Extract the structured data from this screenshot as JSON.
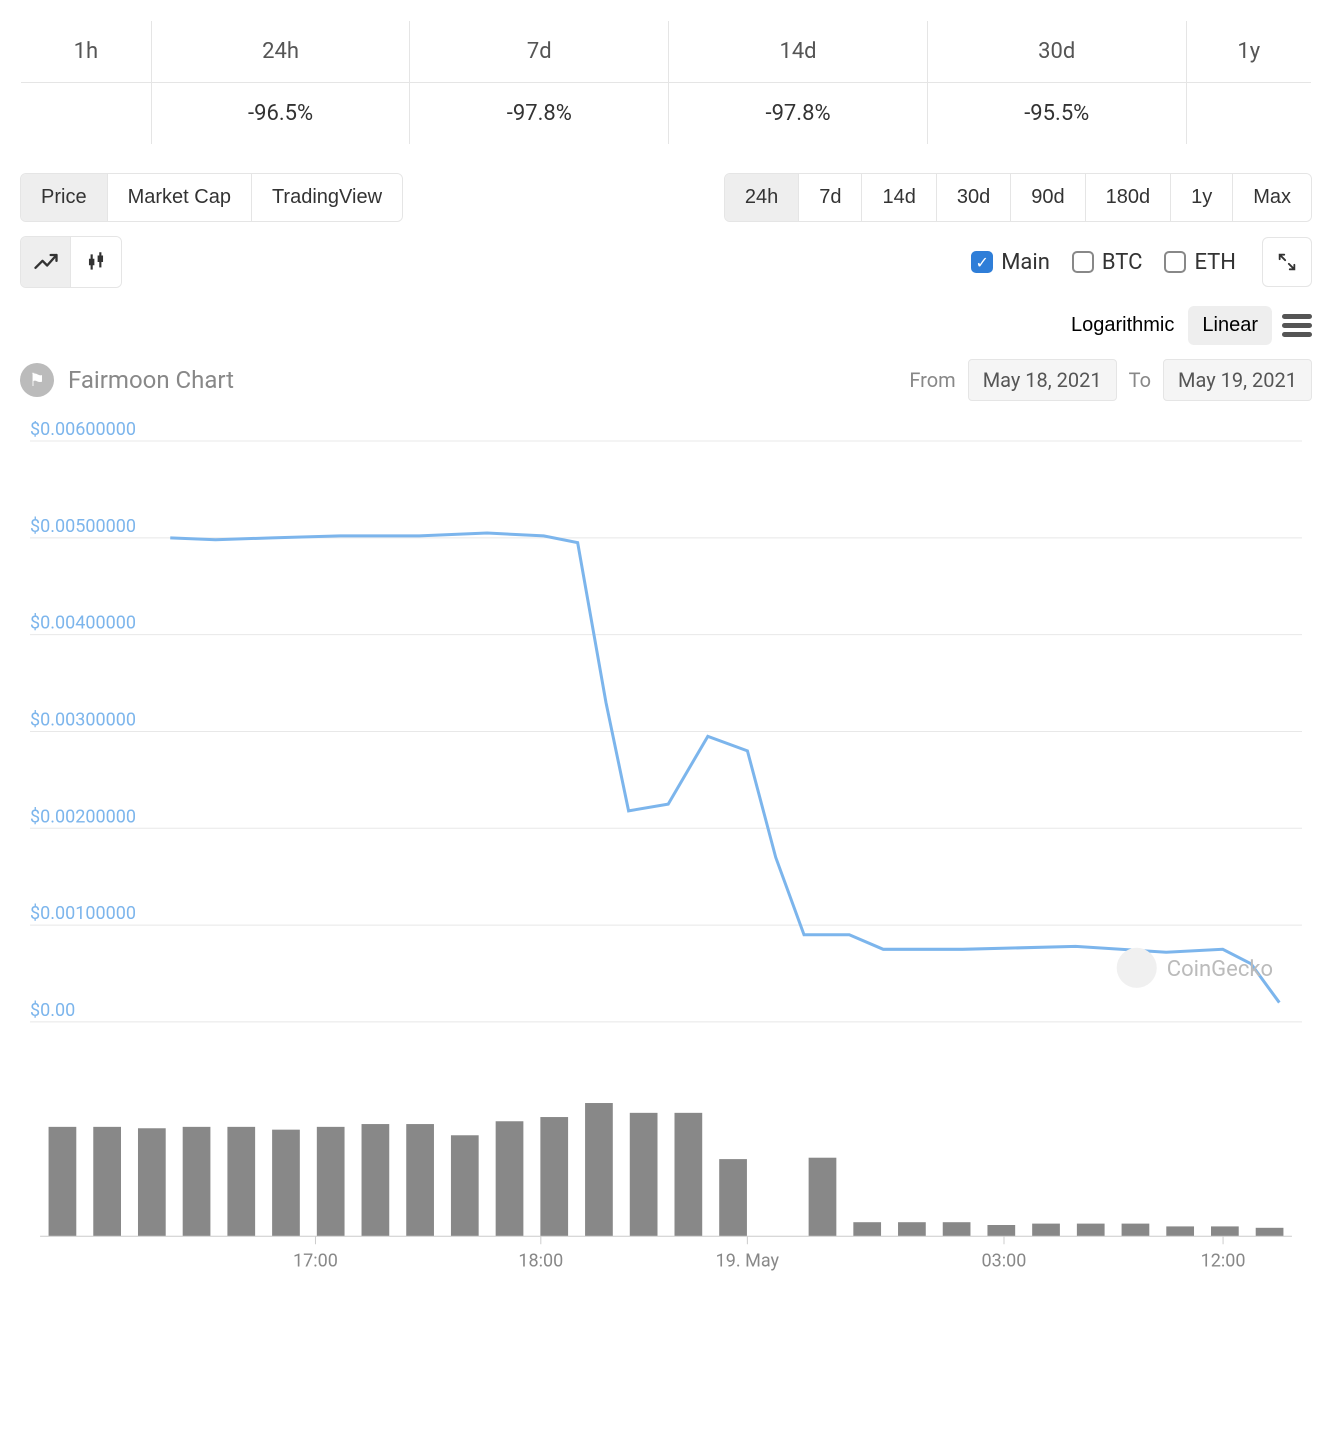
{
  "perf_table": {
    "columns": [
      "1h",
      "24h",
      "7d",
      "14d",
      "30d",
      "1y"
    ],
    "values": [
      "",
      "-96.5%",
      "-97.8%",
      "-97.8%",
      "-95.5%",
      ""
    ],
    "directions": [
      "",
      "neg",
      "neg",
      "neg",
      "neg",
      ""
    ]
  },
  "view_tabs": {
    "items": [
      "Price",
      "Market Cap",
      "TradingView"
    ],
    "active": 0
  },
  "range_tabs": {
    "items": [
      "24h",
      "7d",
      "14d",
      "30d",
      "90d",
      "180d",
      "1y",
      "Max"
    ],
    "active": 0
  },
  "chart_type": {
    "line_active": true
  },
  "currency_checks": [
    {
      "label": "Main",
      "checked": true
    },
    {
      "label": "BTC",
      "checked": false
    },
    {
      "label": "ETH",
      "checked": false
    }
  ],
  "scale": {
    "items": [
      "Logarithmic",
      "Linear"
    ],
    "active": 1
  },
  "chart": {
    "title": "Fairmoon Chart",
    "from_label": "From",
    "to_label": "To",
    "from_date": "May 18, 2021",
    "to_date": "May 19, 2021",
    "watermark": "CoinGecko"
  },
  "price_chart": {
    "type": "line",
    "y_min": 0.0,
    "y_max": 0.006,
    "y_ticks": [
      0.0,
      0.001,
      0.002,
      0.003,
      0.004,
      0.005,
      0.006
    ],
    "y_tick_labels": [
      "$0.00",
      "$0.00100000",
      "$0.00200000",
      "$0.00300000",
      "$0.00400000",
      "$0.00500000",
      "$0.00600000"
    ],
    "line_color": "#7cb5ec",
    "grid_color": "#e8e8e8",
    "background_color": "#ffffff",
    "points": [
      [
        0.0,
        0.005
      ],
      [
        0.04,
        0.00498
      ],
      [
        0.09,
        0.005
      ],
      [
        0.15,
        0.00502
      ],
      [
        0.22,
        0.00502
      ],
      [
        0.28,
        0.00505
      ],
      [
        0.33,
        0.00502
      ],
      [
        0.36,
        0.00495
      ],
      [
        0.385,
        0.0033
      ],
      [
        0.405,
        0.00218
      ],
      [
        0.44,
        0.00225
      ],
      [
        0.475,
        0.00295
      ],
      [
        0.51,
        0.0028
      ],
      [
        0.535,
        0.0017
      ],
      [
        0.56,
        0.0009
      ],
      [
        0.6,
        0.0009
      ],
      [
        0.63,
        0.00075
      ],
      [
        0.7,
        0.00075
      ],
      [
        0.8,
        0.00078
      ],
      [
        0.88,
        0.00072
      ],
      [
        0.93,
        0.00075
      ],
      [
        0.955,
        0.0006
      ],
      [
        0.98,
        0.0002
      ]
    ]
  },
  "volume_chart": {
    "type": "bar",
    "bar_color": "#888888",
    "max_value": 1.0,
    "values": [
      0.78,
      0.78,
      0.77,
      0.78,
      0.78,
      0.76,
      0.78,
      0.8,
      0.8,
      0.72,
      0.82,
      0.85,
      0.95,
      0.88,
      0.88,
      0.55,
      0.0,
      0.56,
      0.1,
      0.1,
      0.1,
      0.08,
      0.09,
      0.09,
      0.09,
      0.07,
      0.07,
      0.06
    ],
    "x_ticks": [
      {
        "pos": 0.22,
        "label": "17:00"
      },
      {
        "pos": 0.4,
        "label": "18:00"
      },
      {
        "pos": 0.565,
        "label": "19. May"
      },
      {
        "pos": 0.77,
        "label": "03:00"
      },
      {
        "pos": 0.945,
        "label": "12:00"
      }
    ]
  }
}
